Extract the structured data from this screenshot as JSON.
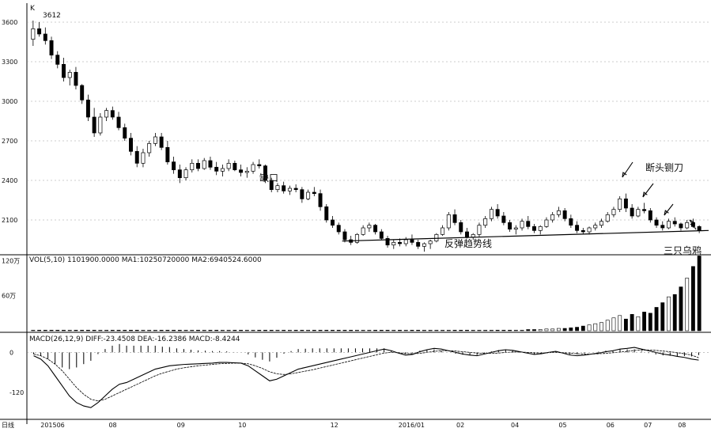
{
  "chart_data": {
    "type": "candlestick",
    "panels": {
      "price": {
        "title": "K",
        "y_ticks": [
          "3600",
          "3300",
          "3000",
          "2700",
          "2400",
          "2100"
        ],
        "y_tick_values": [
          3600,
          3300,
          3000,
          2700,
          2400,
          2100
        ],
        "ylim": [
          1860,
          3720
        ],
        "peak_label": "3612",
        "grid": true,
        "candles_ohlc": [
          [
            3470,
            3612,
            3420,
            3550
          ],
          [
            3550,
            3600,
            3490,
            3510
          ],
          [
            3510,
            3560,
            3430,
            3460
          ],
          [
            3460,
            3490,
            3320,
            3350
          ],
          [
            3350,
            3380,
            3250,
            3280
          ],
          [
            3280,
            3330,
            3150,
            3180
          ],
          [
            3180,
            3240,
            3120,
            3220
          ],
          [
            3220,
            3260,
            3090,
            3120
          ],
          [
            3120,
            3130,
            2980,
            3010
          ],
          [
            3010,
            3050,
            2850,
            2880
          ],
          [
            2880,
            2950,
            2730,
            2760
          ],
          [
            2760,
            2910,
            2740,
            2880
          ],
          [
            2880,
            2950,
            2850,
            2930
          ],
          [
            2930,
            2960,
            2860,
            2880
          ],
          [
            2880,
            2920,
            2780,
            2800
          ],
          [
            2800,
            2830,
            2700,
            2720
          ],
          [
            2720,
            2760,
            2590,
            2620
          ],
          [
            2620,
            2660,
            2500,
            2530
          ],
          [
            2530,
            2640,
            2500,
            2610
          ],
          [
            2610,
            2700,
            2580,
            2680
          ],
          [
            2680,
            2760,
            2660,
            2730
          ],
          [
            2730,
            2760,
            2630,
            2650
          ],
          [
            2650,
            2700,
            2520,
            2540
          ],
          [
            2540,
            2580,
            2450,
            2480
          ],
          [
            2480,
            2520,
            2380,
            2420
          ],
          [
            2420,
            2500,
            2400,
            2480
          ],
          [
            2480,
            2560,
            2460,
            2530
          ],
          [
            2530,
            2560,
            2470,
            2490
          ],
          [
            2490,
            2570,
            2480,
            2550
          ],
          [
            2550,
            2580,
            2480,
            2500
          ],
          [
            2500,
            2540,
            2440,
            2470
          ],
          [
            2470,
            2520,
            2430,
            2490
          ],
          [
            2490,
            2560,
            2470,
            2530
          ],
          [
            2530,
            2550,
            2470,
            2480
          ],
          [
            2480,
            2520,
            2430,
            2460
          ],
          [
            2460,
            2500,
            2420,
            2470
          ],
          [
            2470,
            2540,
            2450,
            2520
          ],
          [
            2520,
            2560,
            2490,
            2510
          ],
          [
            2510,
            2520,
            2380,
            2400
          ],
          [
            2400,
            2420,
            2310,
            2330
          ],
          [
            2330,
            2380,
            2310,
            2360
          ],
          [
            2360,
            2390,
            2300,
            2320
          ],
          [
            2320,
            2360,
            2290,
            2340
          ],
          [
            2340,
            2370,
            2310,
            2330
          ],
          [
            2330,
            2350,
            2230,
            2260
          ],
          [
            2260,
            2330,
            2250,
            2310
          ],
          [
            2310,
            2350,
            2280,
            2300
          ],
          [
            2300,
            2330,
            2170,
            2200
          ],
          [
            2200,
            2220,
            2080,
            2100
          ],
          [
            2100,
            2130,
            2040,
            2060
          ],
          [
            2060,
            2080,
            1990,
            2010
          ],
          [
            2010,
            2030,
            1930,
            1950
          ],
          [
            1950,
            1980,
            1910,
            1930
          ],
          [
            1930,
            2000,
            1920,
            1990
          ],
          [
            1990,
            2060,
            1980,
            2040
          ],
          [
            2040,
            2080,
            2010,
            2060
          ],
          [
            2060,
            2070,
            1990,
            2010
          ],
          [
            2010,
            2030,
            1950,
            1960
          ],
          [
            1960,
            1980,
            1890,
            1910
          ],
          [
            1910,
            1950,
            1880,
            1930
          ],
          [
            1930,
            1960,
            1900,
            1920
          ],
          [
            1920,
            1970,
            1900,
            1950
          ],
          [
            1950,
            1990,
            1910,
            1930
          ],
          [
            1930,
            1950,
            1880,
            1900
          ],
          [
            1900,
            1930,
            1860,
            1920
          ],
          [
            1920,
            1950,
            1880,
            1940
          ],
          [
            1940,
            2000,
            1930,
            1990
          ],
          [
            1990,
            2060,
            1980,
            2040
          ],
          [
            2040,
            2160,
            2020,
            2140
          ],
          [
            2140,
            2180,
            2060,
            2080
          ],
          [
            2080,
            2100,
            1990,
            2010
          ],
          [
            2010,
            2040,
            1960,
            1970
          ],
          [
            1970,
            2000,
            1950,
            1990
          ],
          [
            1990,
            2080,
            1970,
            2060
          ],
          [
            2060,
            2130,
            2040,
            2110
          ],
          [
            2110,
            2200,
            2090,
            2180
          ],
          [
            2180,
            2220,
            2110,
            2130
          ],
          [
            2130,
            2160,
            2060,
            2080
          ],
          [
            2080,
            2100,
            2010,
            2030
          ],
          [
            2030,
            2060,
            1990,
            2040
          ],
          [
            2040,
            2110,
            2020,
            2090
          ],
          [
            2090,
            2130,
            2030,
            2050
          ],
          [
            2050,
            2070,
            2000,
            2020
          ],
          [
            2020,
            2060,
            1990,
            2050
          ],
          [
            2050,
            2120,
            2040,
            2100
          ],
          [
            2100,
            2160,
            2080,
            2140
          ],
          [
            2140,
            2200,
            2120,
            2170
          ],
          [
            2170,
            2190,
            2090,
            2110
          ],
          [
            2110,
            2140,
            2040,
            2060
          ],
          [
            2060,
            2090,
            2000,
            2020
          ],
          [
            2020,
            2040,
            1990,
            2010
          ],
          [
            2010,
            2050,
            1990,
            2040
          ],
          [
            2040,
            2080,
            2020,
            2060
          ],
          [
            2060,
            2110,
            2040,
            2090
          ],
          [
            2090,
            2160,
            2080,
            2140
          ],
          [
            2140,
            2200,
            2120,
            2180
          ],
          [
            2180,
            2280,
            2160,
            2260
          ],
          [
            2260,
            2300,
            2160,
            2190
          ],
          [
            2190,
            2220,
            2110,
            2130
          ],
          [
            2130,
            2200,
            2120,
            2180
          ],
          [
            2180,
            2230,
            2150,
            2170
          ],
          [
            2170,
            2190,
            2080,
            2100
          ],
          [
            2100,
            2120,
            2040,
            2060
          ],
          [
            2060,
            2090,
            2020,
            2040
          ],
          [
            2040,
            2110,
            2030,
            2090
          ],
          [
            2090,
            2120,
            2050,
            2070
          ],
          [
            2070,
            2080,
            2020,
            2040
          ],
          [
            2040,
            2100,
            2030,
            2080
          ],
          [
            2080,
            2110,
            2040,
            2050
          ],
          [
            2050,
            2060,
            2000,
            2020
          ]
        ],
        "trendline": [
          [
            0.46,
            1940
          ],
          [
            1.0,
            2020
          ]
        ]
      },
      "volume": {
        "title": "VOL(5,10) 1101900.0000 MA1:10250720000 MA2:6940524.6000",
        "y_ticks": [
          "120万",
          "60万"
        ],
        "y_tick_values": [
          120,
          60
        ],
        "ylim": [
          0,
          130
        ],
        "values": [
          1,
          1,
          1,
          1,
          1,
          1,
          1,
          1,
          1,
          1,
          1,
          1,
          1,
          1,
          1,
          1,
          1,
          1,
          1,
          1,
          1,
          1,
          1,
          1,
          1,
          1,
          1,
          1,
          1,
          1,
          1,
          1,
          1,
          1,
          1,
          1,
          1,
          1,
          1,
          1,
          1,
          1,
          1,
          1,
          1,
          1,
          1,
          1,
          1,
          1,
          1,
          1,
          1,
          1,
          1,
          1,
          1,
          1,
          1,
          1,
          1,
          1,
          1,
          1,
          1,
          1,
          1,
          1,
          1,
          1,
          1,
          1,
          1,
          1,
          1,
          1,
          1,
          1,
          1,
          1,
          1,
          2,
          2,
          2,
          3,
          3,
          4,
          4,
          5,
          6,
          8,
          10,
          12,
          14,
          18,
          22,
          26,
          20,
          28,
          24,
          32,
          30,
          40,
          48,
          58,
          62,
          75,
          90,
          110,
          128
        ]
      },
      "macd": {
        "title": "MACD(26,12,9) DIFF:-23.4508 DEA:-16.2386 MACD:-8.4244",
        "y_ticks": [
          "0",
          "-120"
        ],
        "y_tick_values": [
          0,
          -120
        ],
        "ylim": [
          -200,
          60
        ],
        "x_labels": [
          "日线",
          "201506",
          "08",
          "09",
          "10",
          "12",
          "2016/01",
          "02",
          "04",
          "05",
          "06",
          "07",
          "08"
        ],
        "x_positions": [
          0.0,
          0.02,
          0.12,
          0.22,
          0.31,
          0.445,
          0.545,
          0.63,
          0.71,
          0.78,
          0.85,
          0.905,
          0.955
        ],
        "diff": [
          -10,
          -20,
          -40,
          -70,
          -100,
          -130,
          -150,
          -160,
          -165,
          -150,
          -130,
          -110,
          -95,
          -90,
          -80,
          -70,
          -60,
          -50,
          -45,
          -40,
          -38,
          -36,
          -35,
          -34,
          -33,
          -32,
          -30,
          -30,
          -31,
          -32,
          -40,
          -55,
          -70,
          -85,
          -80,
          -70,
          -60,
          -50,
          -45,
          -40,
          -35,
          -30,
          -25,
          -20,
          -15,
          -10,
          -5,
          0,
          5,
          10,
          5,
          -2,
          -8,
          -6,
          2,
          8,
          12,
          10,
          5,
          0,
          -5,
          -8,
          -10,
          -5,
          0,
          5,
          8,
          6,
          2,
          -2,
          -6,
          -4,
          0,
          3,
          -2,
          -8,
          -10,
          -8,
          -5,
          -2,
          2,
          5,
          10,
          12,
          15,
          10,
          5,
          0,
          -5,
          -8,
          -12,
          -15,
          -20,
          -23
        ],
        "dea": [
          -5,
          -10,
          -20,
          -35,
          -55,
          -80,
          -105,
          -125,
          -140,
          -145,
          -140,
          -130,
          -120,
          -110,
          -100,
          -90,
          -80,
          -70,
          -62,
          -56,
          -50,
          -46,
          -43,
          -40,
          -38,
          -36,
          -34,
          -33,
          -32,
          -32,
          -34,
          -40,
          -48,
          -58,
          -64,
          -66,
          -64,
          -60,
          -56,
          -52,
          -47,
          -42,
          -37,
          -32,
          -27,
          -22,
          -17,
          -12,
          -7,
          -2,
          0,
          -1,
          -3,
          -4,
          -3,
          0,
          3,
          5,
          5,
          4,
          2,
          0,
          -2,
          -3,
          -3,
          -2,
          0,
          1,
          1,
          0,
          -1,
          -2,
          -1,
          0,
          -1,
          -2,
          -4,
          -5,
          -5,
          -4,
          -3,
          -1,
          1,
          3,
          6,
          7,
          7,
          6,
          4,
          2,
          -1,
          -4,
          -8,
          -16
        ],
        "hist": [
          -5,
          -10,
          -20,
          -35,
          -45,
          -50,
          -45,
          -35,
          -25,
          -5,
          10,
          20,
          25,
          20,
          20,
          20,
          20,
          20,
          17,
          16,
          12,
          10,
          8,
          6,
          5,
          4,
          4,
          3,
          1,
          0,
          -6,
          -15,
          -22,
          -27,
          -16,
          -4,
          4,
          10,
          11,
          12,
          12,
          12,
          12,
          12,
          12,
          12,
          12,
          12,
          12,
          12,
          5,
          -1,
          -5,
          -2,
          5,
          8,
          9,
          5,
          0,
          -4,
          -7,
          -8,
          -8,
          -2,
          3,
          7,
          8,
          5,
          1,
          -2,
          -5,
          -2,
          1,
          3,
          -1,
          -6,
          -6,
          -3,
          0,
          2,
          5,
          6,
          9,
          9,
          9,
          3,
          -2,
          -6,
          -9,
          -10,
          -11,
          -11,
          -12,
          -8
        ]
      }
    },
    "annotations": [
      {
        "text": "缺口"
      },
      {
        "text": "断头铡刀"
      },
      {
        "text": "反弹趋势线"
      },
      {
        "text": "三只乌鸦"
      }
    ]
  }
}
